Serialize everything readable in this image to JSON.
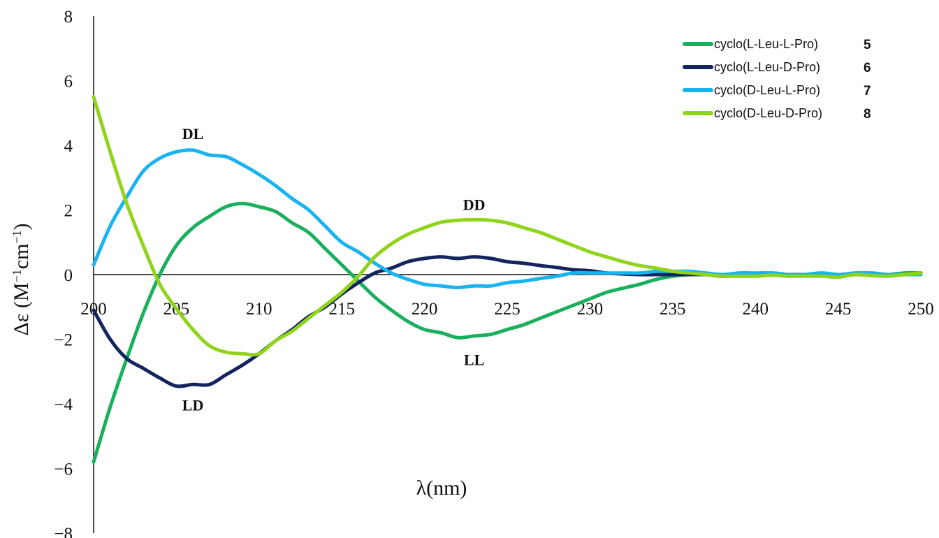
{
  "chart_data": {
    "type": "line",
    "title": "",
    "xlabel": "λ(nm)",
    "ylabel": "Δε (M−1cm−1)",
    "ylabel_parts": {
      "pre": "Δε (M",
      "sup1": "−1",
      "mid": "cm",
      "sup2": "−1",
      "post": ")"
    },
    "xlim": [
      200,
      250
    ],
    "ylim": [
      -8,
      8
    ],
    "xticks": [
      "200",
      "205",
      "210",
      "215",
      "220",
      "225",
      "230",
      "235",
      "240",
      "245",
      "250"
    ],
    "yticks": [
      "8",
      "6",
      "4",
      "2",
      "0",
      "−2",
      "−4",
      "−6",
      "−8"
    ],
    "ytick_values": [
      8,
      6,
      4,
      2,
      0,
      -2,
      -4,
      -6,
      -8
    ],
    "xtick_values": [
      200,
      205,
      210,
      215,
      220,
      225,
      230,
      235,
      240,
      245,
      250
    ],
    "grid": false,
    "legend_position": "top-right",
    "series": [
      {
        "name": "cyclo(L-Leu-L-Pro)",
        "number": "5",
        "color": "#1aaf5d",
        "x": [
          200,
          201,
          202,
          203,
          204,
          205,
          206,
          207,
          208,
          209,
          210,
          211,
          212,
          213,
          214,
          215,
          216,
          217,
          218,
          219,
          220,
          221,
          222,
          223,
          224,
          225,
          226,
          227,
          228,
          229,
          230,
          231,
          232,
          233,
          234,
          235,
          236,
          237,
          238,
          239,
          240,
          241,
          242,
          243,
          244,
          245,
          246,
          247,
          248,
          249,
          250
        ],
        "y": [
          -5.8,
          -4.1,
          -2.6,
          -1.2,
          0.0,
          0.9,
          1.45,
          1.8,
          2.1,
          2.2,
          2.1,
          1.95,
          1.6,
          1.3,
          0.8,
          0.3,
          -0.2,
          -0.7,
          -1.1,
          -1.45,
          -1.7,
          -1.8,
          -1.95,
          -1.9,
          -1.85,
          -1.7,
          -1.55,
          -1.35,
          -1.15,
          -0.95,
          -0.75,
          -0.55,
          -0.42,
          -0.3,
          -0.15,
          -0.05,
          0.0,
          0.0,
          -0.05,
          0.0,
          0.0,
          0.05,
          0.0,
          0.0,
          0.05,
          0.0,
          0.0,
          0.05,
          0.0,
          0.05,
          0.05
        ]
      },
      {
        "name": "cyclo(L-Leu-D-Pro)",
        "number": "6",
        "color": "#14245e",
        "x": [
          200,
          201,
          202,
          203,
          204,
          205,
          206,
          207,
          208,
          209,
          210,
          211,
          212,
          213,
          214,
          215,
          216,
          217,
          218,
          219,
          220,
          221,
          222,
          223,
          224,
          225,
          226,
          227,
          228,
          229,
          230,
          231,
          232,
          233,
          234,
          235,
          236,
          237,
          238,
          239,
          240,
          241,
          242,
          243,
          244,
          245,
          246,
          247,
          248,
          249,
          250
        ],
        "y": [
          -1.1,
          -2.0,
          -2.6,
          -2.9,
          -3.2,
          -3.45,
          -3.4,
          -3.4,
          -3.1,
          -2.8,
          -2.45,
          -2.05,
          -1.7,
          -1.3,
          -1.0,
          -0.6,
          -0.25,
          0.05,
          0.2,
          0.4,
          0.5,
          0.55,
          0.5,
          0.55,
          0.5,
          0.4,
          0.35,
          0.28,
          0.22,
          0.15,
          0.12,
          0.05,
          0.02,
          0.0,
          0.0,
          0.0,
          0.0,
          0.0,
          -0.05,
          0.0,
          0.0,
          0.0,
          0.0,
          0.0,
          0.0,
          0.0,
          0.0,
          0.0,
          0.0,
          0.0,
          0.05
        ]
      },
      {
        "name": "cyclo(D-Leu-L-Pro)",
        "number": "7",
        "color": "#19b3ef",
        "x": [
          200,
          201,
          202,
          203,
          204,
          205,
          206,
          207,
          208,
          209,
          210,
          211,
          212,
          213,
          214,
          215,
          216,
          217,
          218,
          219,
          220,
          221,
          222,
          223,
          224,
          225,
          226,
          227,
          228,
          229,
          230,
          231,
          232,
          233,
          234,
          235,
          236,
          237,
          238,
          239,
          240,
          241,
          242,
          243,
          244,
          245,
          246,
          247,
          248,
          249,
          250
        ],
        "y": [
          0.3,
          1.5,
          2.4,
          3.2,
          3.6,
          3.8,
          3.85,
          3.7,
          3.65,
          3.4,
          3.1,
          2.75,
          2.35,
          2.0,
          1.5,
          1.0,
          0.7,
          0.35,
          0.05,
          -0.15,
          -0.3,
          -0.35,
          -0.4,
          -0.35,
          -0.35,
          -0.25,
          -0.2,
          -0.12,
          -0.05,
          0.05,
          0.05,
          0.05,
          0.05,
          0.05,
          0.1,
          0.1,
          0.1,
          0.05,
          0.0,
          0.05,
          0.05,
          0.05,
          0.0,
          0.0,
          0.05,
          0.0,
          0.05,
          0.05,
          0.0,
          0.0,
          0.0
        ]
      },
      {
        "name": "cyclo(D-Leu-D-Pro)",
        "number": "8",
        "color": "#8fd41b",
        "x": [
          200,
          201,
          202,
          203,
          204,
          205,
          206,
          207,
          208,
          209,
          210,
          211,
          212,
          213,
          214,
          215,
          216,
          217,
          218,
          219,
          220,
          221,
          222,
          223,
          224,
          225,
          226,
          227,
          228,
          229,
          230,
          231,
          232,
          233,
          234,
          235,
          236,
          237,
          238,
          239,
          240,
          241,
          242,
          243,
          244,
          245,
          246,
          247,
          248,
          249,
          250
        ],
        "y": [
          5.5,
          3.8,
          2.2,
          0.9,
          -0.3,
          -1.05,
          -1.7,
          -2.2,
          -2.4,
          -2.45,
          -2.45,
          -2.05,
          -1.75,
          -1.35,
          -0.95,
          -0.55,
          -0.05,
          0.55,
          0.95,
          1.25,
          1.45,
          1.62,
          1.68,
          1.7,
          1.68,
          1.6,
          1.45,
          1.3,
          1.1,
          0.9,
          0.7,
          0.55,
          0.4,
          0.28,
          0.2,
          0.1,
          0.05,
          0.0,
          -0.05,
          -0.05,
          -0.05,
          -0.02,
          -0.05,
          -0.05,
          -0.05,
          -0.08,
          0.0,
          -0.03,
          -0.05,
          0.0,
          0.05
        ]
      }
    ],
    "annotations": [
      {
        "text": "DL",
        "x": 206.0,
        "y": 4.2
      },
      {
        "text": "DD",
        "x": 223.0,
        "y": 2.0
      },
      {
        "text": "LL",
        "x": 223.0,
        "y": -2.8
      },
      {
        "text": "LD",
        "x": 206.0,
        "y": -4.2
      }
    ]
  }
}
